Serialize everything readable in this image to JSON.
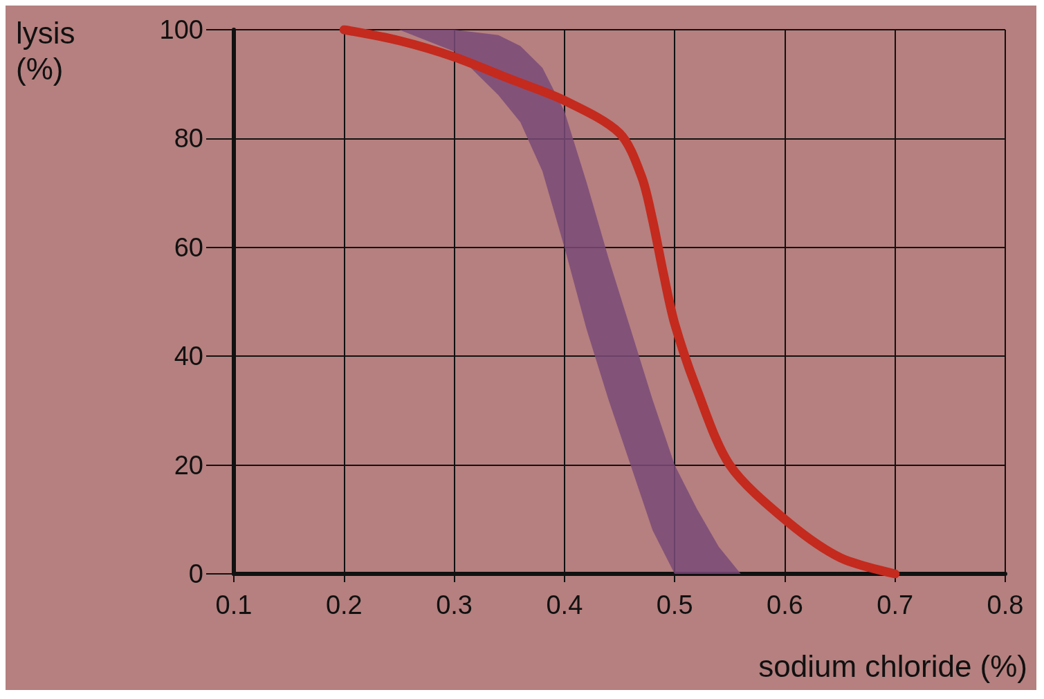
{
  "chart_data": {
    "type": "line",
    "xlabel": "sodium chloride (%)",
    "ylabel": "lysis\n(%)",
    "xlim": [
      0.1,
      0.8
    ],
    "xticks": [
      0.1,
      0.2,
      0.3,
      0.4,
      0.5,
      0.6,
      0.7,
      0.8
    ],
    "ylim": [
      0,
      100
    ],
    "yticks": [
      0,
      20,
      40,
      60,
      80,
      100
    ],
    "grid": true,
    "line_style": "solid",
    "series": [
      {
        "type": "area",
        "color": "#7a4a78",
        "x": [
          0.25,
          0.3,
          0.34,
          0.36,
          0.38,
          0.4,
          0.42,
          0.44,
          0.46,
          0.48,
          0.5,
          0.52,
          0.54,
          0.56
        ],
        "values": [
          null,
          null,
          null,
          null,
          null,
          null,
          null,
          null,
          null,
          null,
          null,
          null,
          null,
          null
        ],
        "lower": [
          100,
          96,
          88,
          83,
          74,
          60,
          45,
          32,
          20,
          8,
          0,
          0,
          0,
          0
        ],
        "upper": [
          100,
          100,
          99,
          97,
          93,
          85,
          72,
          58,
          45,
          32,
          20,
          12,
          5,
          0
        ]
      },
      {
        "color": "#c42a1e",
        "x": [
          0.2,
          0.25,
          0.3,
          0.35,
          0.4,
          0.45,
          0.47,
          0.48,
          0.49,
          0.5,
          0.52,
          0.55,
          0.6,
          0.65,
          0.7
        ],
        "values": [
          100,
          98,
          95,
          91,
          87,
          81,
          73,
          65,
          55,
          46,
          34,
          20,
          10,
          3,
          0
        ]
      }
    ]
  }
}
